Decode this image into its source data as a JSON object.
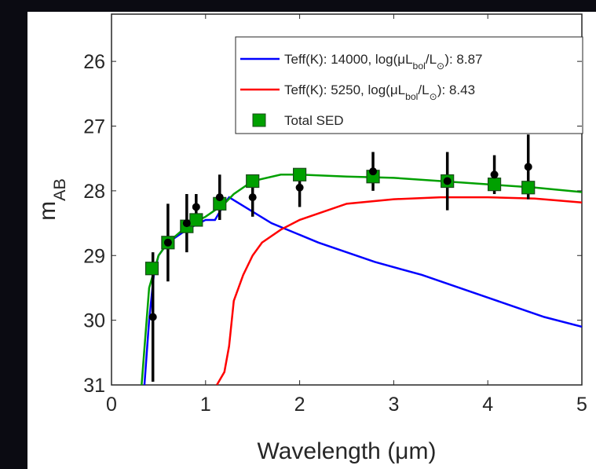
{
  "chart_data": {
    "type": "line",
    "xlabel": "Wavelength (μm)",
    "ylabel": "m_{AB}",
    "xlim": [
      0,
      5
    ],
    "ylim": [
      31,
      25.27
    ],
    "xticks": [
      0,
      1,
      2,
      3,
      4,
      5
    ],
    "yticks": [
      26,
      27,
      28,
      29,
      30,
      31
    ],
    "series": [
      {
        "name": "Teff(K): 14000, log(μL_{bol}/L_{⊙}): 8.87",
        "color": "#0000ff",
        "x": [
          0.35,
          0.4,
          0.45,
          0.5,
          0.6,
          0.8,
          1.0,
          1.1,
          1.2,
          1.25,
          1.7,
          2.2,
          2.8,
          3.3,
          3.8,
          4.2,
          4.6,
          5.0
        ],
        "values": [
          31,
          30,
          29.3,
          29,
          28.8,
          28.6,
          28.45,
          28.45,
          28.2,
          28.1,
          28.5,
          28.8,
          29.1,
          29.3,
          29.55,
          29.75,
          29.95,
          30.1
        ]
      },
      {
        "name": "Teff(K): 5250, log(μL_{bol}/L_{⊙}): 8.43",
        "color": "#ff0000",
        "x": [
          1.12,
          1.2,
          1.25,
          1.3,
          1.4,
          1.5,
          1.6,
          1.8,
          2.0,
          2.2,
          2.5,
          3.0,
          3.5,
          4.0,
          4.5,
          5.0
        ],
        "values": [
          31,
          30.8,
          30.4,
          29.7,
          29.3,
          29.0,
          28.8,
          28.6,
          28.45,
          28.35,
          28.2,
          28.13,
          28.1,
          28.1,
          28.12,
          28.18
        ]
      },
      {
        "name": "Total SED",
        "color": "#00a000",
        "x": [
          0.32,
          0.4,
          0.5,
          0.6,
          0.8,
          1.0,
          1.1,
          1.2,
          1.3,
          1.5,
          1.8,
          2.0,
          2.5,
          3.0,
          3.5,
          4.0,
          4.5,
          5.0
        ],
        "values": [
          31,
          29.5,
          29,
          28.8,
          28.55,
          28.4,
          28.3,
          28.2,
          28.05,
          27.85,
          27.75,
          27.75,
          27.78,
          27.8,
          27.85,
          27.9,
          27.95,
          28.02
        ],
        "markers": {
          "x": [
            0.43,
            0.6,
            0.8,
            0.9,
            1.15,
            1.5,
            2.0,
            2.78,
            3.57,
            4.07,
            4.43
          ],
          "values": [
            29.2,
            28.8,
            28.55,
            28.45,
            28.2,
            27.85,
            27.75,
            27.78,
            27.85,
            27.9,
            27.95
          ]
        }
      }
    ],
    "points": {
      "color": "#000000",
      "x": [
        0.44,
        0.6,
        0.8,
        0.9,
        1.15,
        1.5,
        2.0,
        2.78,
        3.57,
        4.07,
        4.43
      ],
      "values": [
        29.95,
        28.8,
        28.5,
        28.25,
        28.1,
        28.1,
        27.95,
        27.7,
        27.85,
        27.75,
        27.63
      ],
      "errors": [
        1.0,
        0.6,
        0.45,
        0.2,
        0.35,
        0.3,
        0.3,
        0.3,
        0.45,
        0.3,
        0.5
      ]
    }
  }
}
